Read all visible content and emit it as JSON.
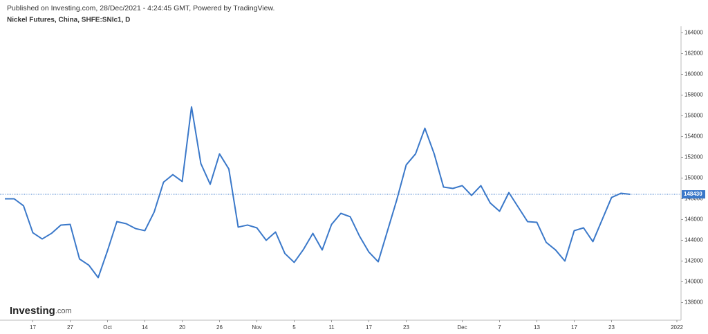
{
  "header": {
    "published": "Published on Investing.com, 28/Dec/2021 - 4:24:45 GMT, Powered by TradingView.",
    "logo": "Investing",
    "logo_suffix": ".com"
  },
  "chart_data": {
    "type": "line",
    "title": "Nickel Futures, China, SHFE:SNIc1, D",
    "categories": [
      null,
      null,
      null,
      "17",
      null,
      null,
      null,
      "27",
      null,
      null,
      null,
      "Oct",
      null,
      null,
      null,
      "14",
      null,
      null,
      null,
      "20",
      null,
      null,
      null,
      "26",
      null,
      null,
      null,
      "Nov",
      null,
      null,
      null,
      "5",
      null,
      null,
      null,
      "11",
      null,
      null,
      null,
      "17",
      null,
      null,
      null,
      "23",
      null,
      null,
      null,
      null,
      null,
      "Dec",
      null,
      null,
      null,
      "7",
      null,
      null,
      null,
      "13",
      null,
      null,
      null,
      "17",
      null,
      null,
      null,
      "23",
      null,
      null,
      null,
      null,
      null,
      null,
      "2022"
    ],
    "series": [
      {
        "name": "SHFE:SNIc1",
        "color": "#3a78c9",
        "values": [
          148000,
          148000,
          147330,
          144730,
          144130,
          144670,
          145470,
          145530,
          142200,
          141600,
          140400,
          143000,
          145800,
          145600,
          145130,
          144930,
          146730,
          149600,
          150330,
          149670,
          156870,
          151400,
          149400,
          152330,
          150870,
          145270,
          145470,
          145200,
          144000,
          144800,
          142730,
          141870,
          143130,
          144670,
          143070,
          145530,
          146600,
          146270,
          144400,
          142870,
          141930,
          144930,
          147930,
          151270,
          152330,
          154800,
          152330,
          149130,
          149000,
          149270,
          148330,
          149270,
          147600,
          146800,
          148600,
          147200,
          145800,
          145730,
          143800,
          143070,
          142000,
          144930,
          145200,
          143870,
          146000,
          148130,
          148530,
          148430,
          null,
          null,
          null,
          null,
          null
        ]
      }
    ],
    "last_price": 148430,
    "ylim": [
      136300,
      164500
    ],
    "yticks": [
      138000,
      140000,
      142000,
      144000,
      146000,
      148000,
      150000,
      152000,
      154000,
      156000,
      158000,
      160000,
      162000,
      164000
    ],
    "grid": false
  }
}
